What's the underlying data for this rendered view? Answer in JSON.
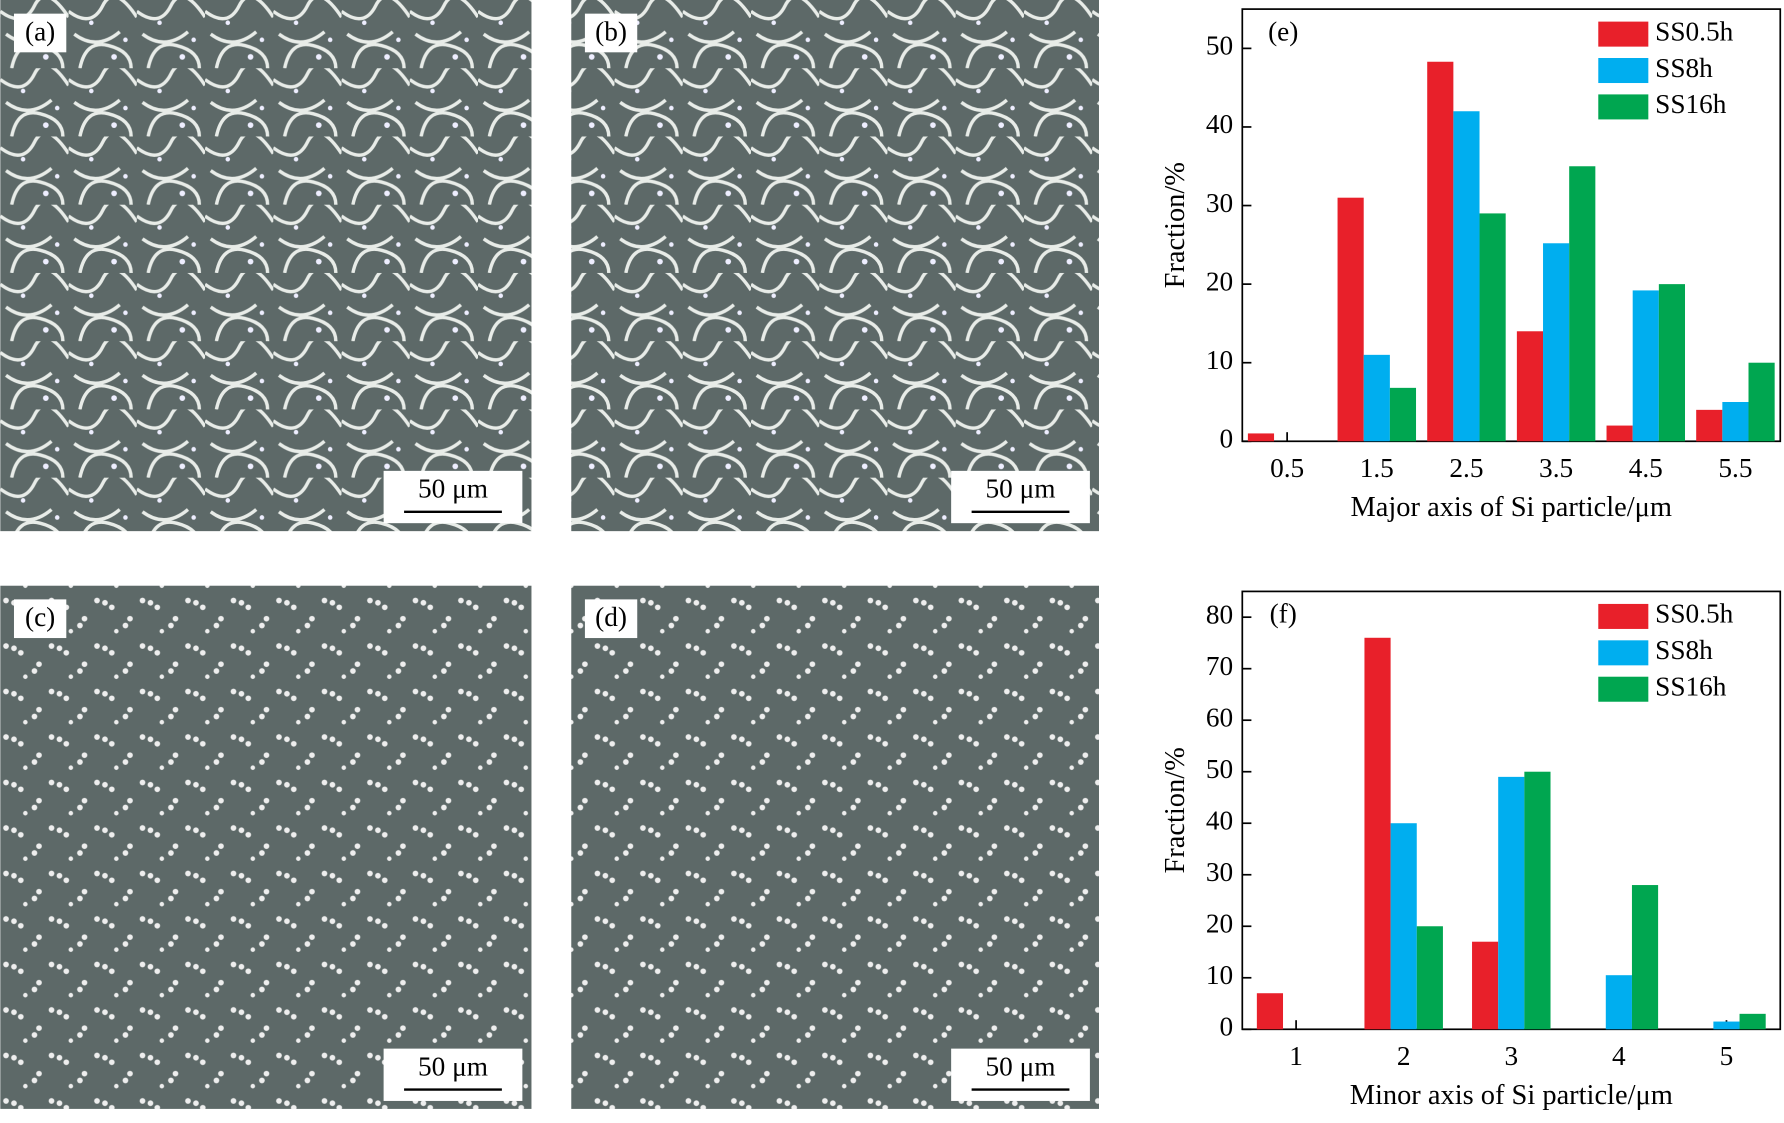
{
  "images": [
    {
      "label": "(a)",
      "scale_bar": "50 μm"
    },
    {
      "label": "(b)",
      "scale_bar": "50 μm"
    },
    {
      "label": "(c)",
      "scale_bar": "50 μm"
    },
    {
      "label": "(d)",
      "scale_bar": "50 μm"
    }
  ],
  "chart_data": [
    {
      "type": "bar",
      "panel_label": "(e)",
      "x_label": "Major axis of Si particle/μm",
      "y_label": "Fraction/%",
      "categories": [
        "0.5",
        "1.5",
        "2.5",
        "3.5",
        "4.5",
        "5.5"
      ],
      "series": [
        {
          "name": "SS0.5h",
          "color": "#e8202a",
          "values": [
            1,
            31,
            48.3,
            14,
            2,
            4
          ]
        },
        {
          "name": "SS8h",
          "color": "#00aeef",
          "values": [
            0,
            11,
            42,
            25.2,
            19.2,
            5
          ]
        },
        {
          "name": "SS16h",
          "color": "#00a650",
          "values": [
            0,
            6.8,
            29,
            35,
            20,
            10
          ]
        }
      ],
      "ylim": [
        0,
        55
      ],
      "yticks": [
        0,
        10,
        20,
        30,
        40,
        50
      ],
      "legend": "upper right"
    },
    {
      "type": "bar",
      "panel_label": "(f)",
      "x_label": "Minor axis of Si particle/μm",
      "y_label": "Fraction/%",
      "categories": [
        "1",
        "2",
        "3",
        "4",
        "5"
      ],
      "series": [
        {
          "name": "SS0.5h",
          "color": "#e8202a",
          "values": [
            7,
            76,
            17,
            0,
            0
          ]
        },
        {
          "name": "SS8h",
          "color": "#00aeef",
          "values": [
            0,
            40,
            49,
            10.5,
            1.5
          ]
        },
        {
          "name": "SS16h",
          "color": "#00a650",
          "values": [
            0,
            20,
            50,
            28,
            3
          ]
        }
      ],
      "ylim": [
        0,
        85
      ],
      "yticks": [
        0,
        10,
        20,
        30,
        40,
        50,
        60,
        70,
        80
      ],
      "legend": "upper right"
    }
  ]
}
